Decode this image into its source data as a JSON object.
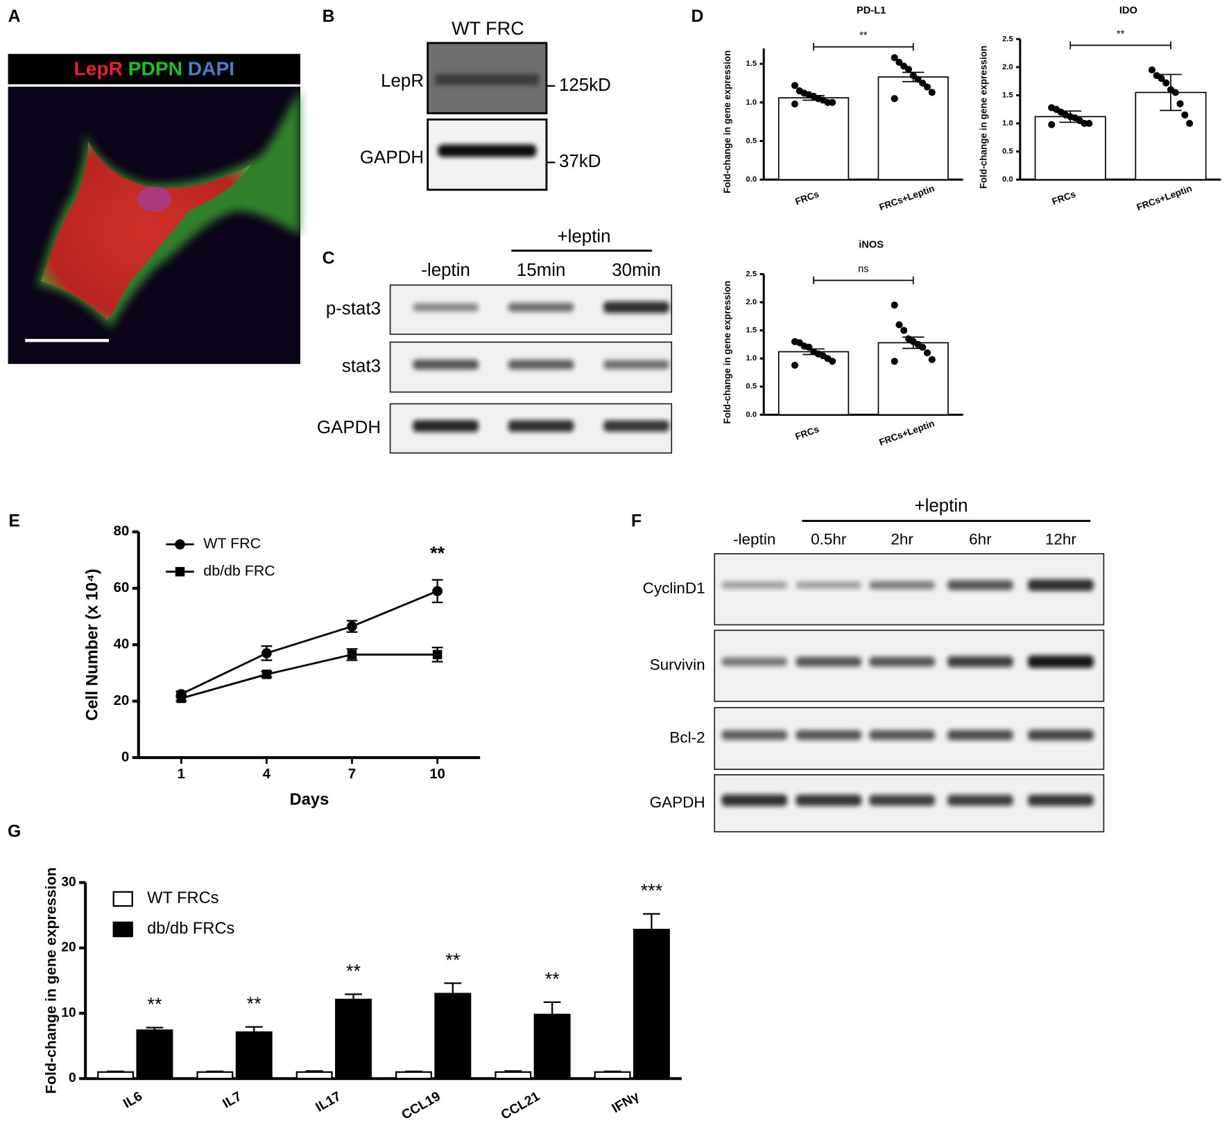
{
  "panel_labels": [
    "A",
    "B",
    "C",
    "D",
    "E",
    "F",
    "G"
  ],
  "panel_a": {
    "stain_labels": [
      "LepR",
      "PDPN",
      "DAPI"
    ],
    "stain_colors": [
      "#e8202a",
      "#22c022",
      "#4a7fd0"
    ]
  },
  "panel_b": {
    "title": "WT FRC",
    "rows": [
      {
        "label": "LepR",
        "size": "125kD"
      },
      {
        "label": "GAPDH",
        "size": "37kD"
      }
    ]
  },
  "panel_c": {
    "treatment": "+leptin",
    "lanes": [
      "-leptin",
      "15min",
      "30min"
    ],
    "rows": [
      "p-stat3",
      "stat3",
      "GAPDH"
    ]
  },
  "panel_f": {
    "treatment": "+leptin",
    "lanes": [
      "-leptin",
      "0.5hr",
      "2hr",
      "6hr",
      "12hr"
    ],
    "rows": [
      "CyclinD1",
      "Survivin",
      "Bcl-2",
      "GAPDH"
    ]
  },
  "chart_data": [
    {
      "type": "bar",
      "title": "PD-L1",
      "y_label": "Fold-change in gene expression",
      "categories": [
        "FRCs",
        "FRCs+Leptin"
      ],
      "values": [
        1.06,
        1.33
      ],
      "errors": [
        0.03,
        0.06
      ],
      "points": [
        [
          1.22,
          1.15,
          1.12,
          1.1,
          1.08,
          1.05,
          1.03,
          1.0,
          1.0,
          0.98
        ],
        [
          1.58,
          1.52,
          1.47,
          1.43,
          1.35,
          1.3,
          1.25,
          1.2,
          1.13,
          1.05
        ]
      ],
      "annotation": "**",
      "color": "#ffffff",
      "ylim": [
        0,
        1.7
      ],
      "yticks": [
        {
          "value": 0,
          "label": "0.0"
        },
        0.5,
        {
          "value": 1,
          "label": "1.0"
        },
        1.5
      ]
    },
    {
      "type": "bar",
      "title": "IDO",
      "y_label": "Fold-change in gene expression",
      "categories": [
        "FRCs",
        "FRCs+Leptin"
      ],
      "values": [
        1.12,
        1.55
      ],
      "errors": [
        0.1,
        0.32
      ],
      "points": [
        [
          1.28,
          1.25,
          1.2,
          1.15,
          1.12,
          1.1,
          1.05,
          1.0,
          1.0,
          0.98
        ],
        [
          1.95,
          1.85,
          1.8,
          1.72,
          1.6,
          1.55,
          1.35,
          1.15,
          1.0
        ]
      ],
      "annotation": "**",
      "color": "#ffffff",
      "ylim": [
        0,
        2.5
      ],
      "yticks": [
        {
          "value": 0,
          "label": "0.0"
        },
        0.5,
        {
          "value": 1,
          "label": "1.0"
        },
        1.5,
        {
          "value": 2,
          "label": "2.0"
        },
        2.5
      ]
    },
    {
      "type": "bar",
      "title": "iNOS",
      "y_label": "Fold-change in gene expression",
      "categories": [
        "FRCs",
        "FRCs+Leptin"
      ],
      "values": [
        1.12,
        1.28
      ],
      "errors": [
        0.05,
        0.1
      ],
      "points": [
        [
          1.3,
          1.28,
          1.22,
          1.2,
          1.12,
          1.08,
          1.05,
          1.0,
          0.95,
          0.88
        ],
        [
          1.95,
          1.6,
          1.5,
          1.35,
          1.3,
          1.25,
          1.2,
          1.1,
          0.98,
          0.95
        ]
      ],
      "annotation": "ns",
      "color": "#ffffff",
      "ylim": [
        0,
        2.5
      ],
      "yticks": [
        {
          "value": 0,
          "label": "0.0"
        },
        0.5,
        {
          "value": 1,
          "label": "1.0"
        },
        1.5,
        {
          "value": 2,
          "label": "2.0"
        },
        2.5
      ]
    },
    {
      "type": "line",
      "x_label": "Days",
      "y_label": "Cell Number (x 10⁴)",
      "x": [
        1,
        4,
        7,
        10
      ],
      "xlim": [
        -0.5,
        11.5
      ],
      "xticks": [
        1,
        4,
        7,
        10
      ],
      "ylim": [
        0,
        80
      ],
      "yticks": [
        0,
        20,
        40,
        60,
        80
      ],
      "series": [
        {
          "name": "WT FRC",
          "color": "#000000",
          "marker": "circle",
          "values": [
            22.5,
            37,
            46.5,
            59
          ],
          "errors": [
            1,
            2.5,
            2,
            4
          ]
        },
        {
          "name": "db/db FRC",
          "color": "#000000",
          "marker": "square",
          "values": [
            21,
            29.5,
            36.5,
            36.5
          ],
          "errors": [
            1,
            1,
            2,
            2.5
          ]
        }
      ],
      "annotation": "**"
    },
    {
      "type": "grouped_bar",
      "y_label": "Fold-change in gene expression",
      "categories": [
        "IL6",
        "IL7",
        "IL17",
        "CCL19",
        "CCL21",
        "IFNγ"
      ],
      "ylim": [
        0,
        30
      ],
      "yticks": [
        0,
        10,
        20,
        30
      ],
      "series": [
        {
          "name": "WT FRCs",
          "color": "#ffffff",
          "values": [
            1,
            1,
            1,
            1,
            1,
            1
          ],
          "errors": [
            0.1,
            0.1,
            0.15,
            0.1,
            0.15,
            0.1
          ]
        },
        {
          "name": "db/db FRCs",
          "color": "#000000",
          "values": [
            7.4,
            7.1,
            12.1,
            13,
            9.8,
            22.8
          ],
          "errors": [
            0.4,
            0.8,
            0.8,
            1.6,
            1.9,
            2.4
          ]
        }
      ],
      "annotations": [
        "**",
        "**",
        "**",
        "**",
        "**",
        "***"
      ]
    }
  ]
}
